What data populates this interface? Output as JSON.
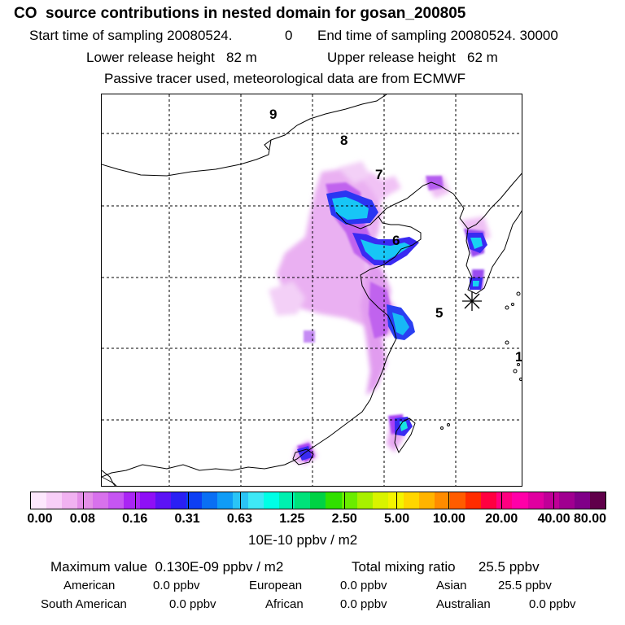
{
  "header": {
    "title": "CO  source contributions in nested domain for gosan_200805",
    "start_label": "Start time of sampling 20080524.",
    "start_extra": "0",
    "end_label": "End time of sampling 20080524. 30000",
    "lower_label": "Lower release height   82 m",
    "upper_label": "Upper release height   62 m",
    "tracer_note": "Passive tracer used, meteorological data are from ECMWF"
  },
  "map": {
    "trajectory_labels": [
      "9",
      "8",
      "7",
      "6",
      "5",
      "1"
    ],
    "receptor_marker": "gosan-asterisk-marker"
  },
  "colorbar": {
    "colors": [
      "#fde8fd",
      "#f8cff8",
      "#f1b2f1",
      "#e48fe8",
      "#d871ec",
      "#c655f2",
      "#aa25f4",
      "#8f0ff6",
      "#5c12f5",
      "#2a20f4",
      "#0d3ff4",
      "#0a6ff4",
      "#109cf6",
      "#2ac4f6",
      "#3ee8f6",
      "#00ffe6",
      "#00f0b0",
      "#00e27a",
      "#00d244",
      "#30e000",
      "#6aec00",
      "#a8f000",
      "#d9f400",
      "#f4f400",
      "#ffd600",
      "#ffb400",
      "#ff8c00",
      "#ff5c00",
      "#ff2c00",
      "#ff0040",
      "#ff0080",
      "#ff00a8",
      "#e000a0",
      "#c00098",
      "#a00090",
      "#800088",
      "#60004a"
    ],
    "tick_labels": [
      "0.00",
      "0.08",
      "0.16",
      "0.31",
      "0.63",
      "1.25",
      "2.50",
      "5.00",
      "10.00",
      "20.00",
      "40.00",
      "80.00"
    ],
    "units": "10E-10 ppbv / m2"
  },
  "summary": {
    "max_value_text": "Maximum value  0.130E-09 ppbv / m2",
    "total_mixing_text": "Total mixing ratio      25.5 ppbv",
    "regions": [
      {
        "name": "American",
        "value": "0.0 ppbv"
      },
      {
        "name": "European",
        "value": "0.0 ppbv"
      },
      {
        "name": "Asian",
        "value": "25.5 ppbv"
      },
      {
        "name": "South American",
        "value": "0.0 ppbv"
      },
      {
        "name": "African",
        "value": "0.0 ppbv"
      },
      {
        "name": "Australian",
        "value": "0.0 ppbv"
      }
    ]
  }
}
